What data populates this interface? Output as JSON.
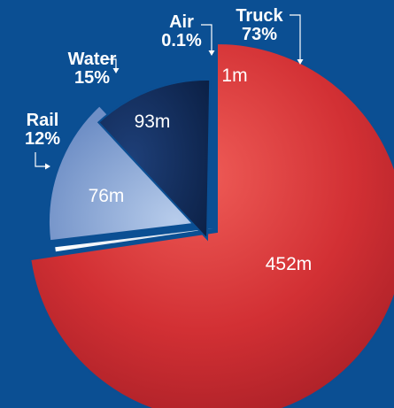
{
  "chart_data": {
    "type": "pie",
    "categories": [
      "Truck",
      "Air",
      "Water",
      "Rail"
    ],
    "values": [
      452,
      1,
      93,
      76
    ],
    "value_labels": [
      "452m",
      "1m",
      "93m",
      "76m"
    ],
    "percent_labels": [
      "73%",
      "0.1%",
      "15%",
      "12%"
    ],
    "colors": {
      "Truck": "#c8282e",
      "Air": "#e6eef8",
      "Water": "#8faedb",
      "Rail": "#0f2a57"
    },
    "title": "",
    "legend": "none"
  }
}
